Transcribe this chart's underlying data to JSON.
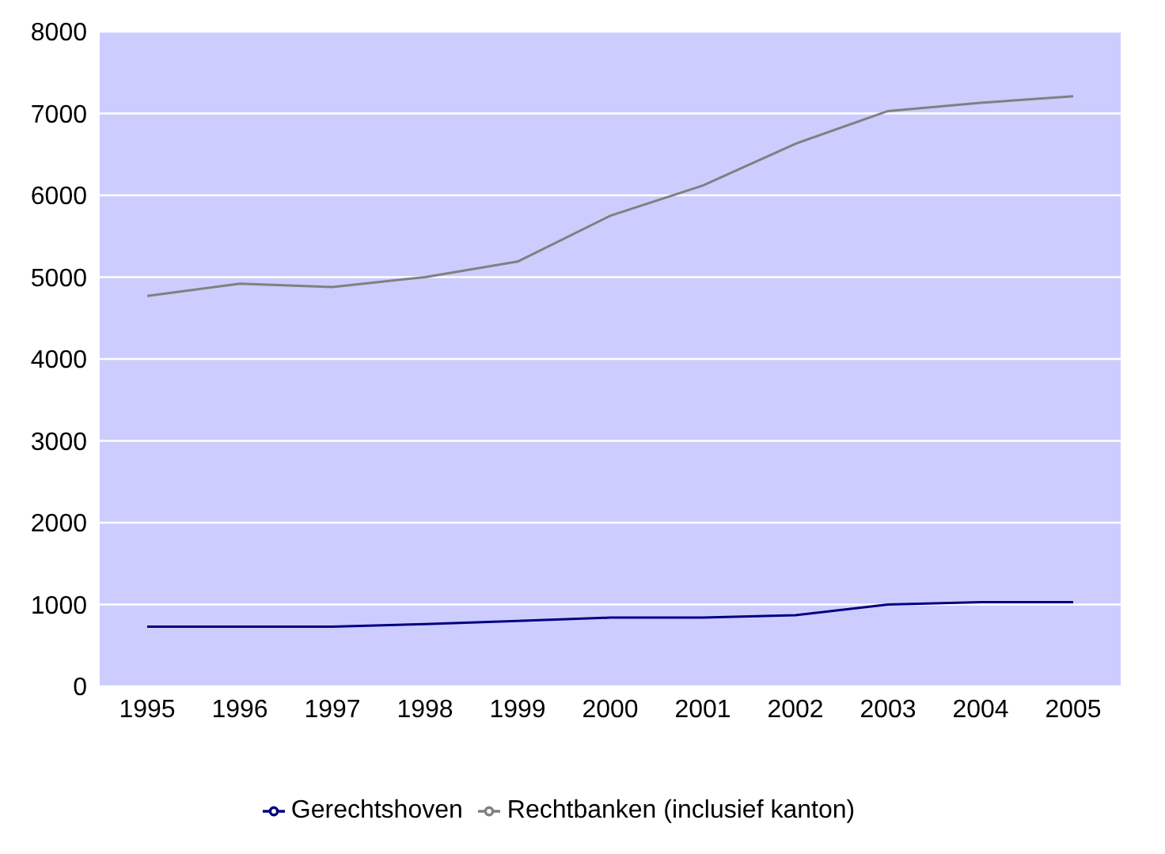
{
  "chart_data": {
    "type": "line",
    "categories": [
      "1995",
      "1996",
      "1997",
      "1998",
      "1999",
      "2000",
      "2001",
      "2002",
      "2003",
      "2004",
      "2005"
    ],
    "series": [
      {
        "name": "Gerechtshoven",
        "color": "#000080",
        "values": [
          730,
          730,
          730,
          760,
          800,
          840,
          840,
          870,
          1000,
          1030,
          1030
        ]
      },
      {
        "name": "Rechtbanken (inclusief kanton)",
        "color": "#808080",
        "values": [
          4770,
          4920,
          4880,
          5000,
          5190,
          5750,
          6120,
          6630,
          7030,
          7130,
          7210
        ]
      }
    ],
    "ylim": [
      0,
      8000
    ],
    "yticks": [
      0,
      1000,
      2000,
      3000,
      4000,
      5000,
      6000,
      7000,
      8000
    ],
    "grid": "y",
    "legend": "bottom",
    "marker": "none",
    "line_style": "solid"
  }
}
